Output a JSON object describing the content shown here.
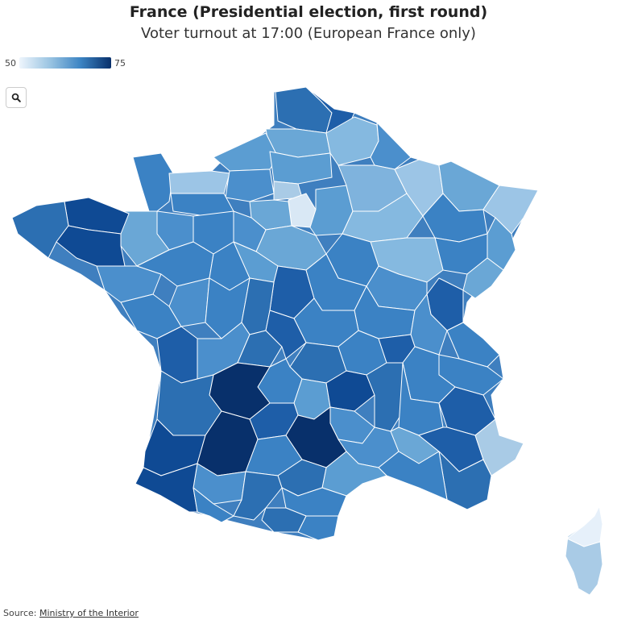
{
  "header": {
    "title": "France (Presidential election, first round)",
    "subtitle": "Voter turnout at 17:00 (European France only)"
  },
  "legend": {
    "min": "50",
    "max": "75"
  },
  "controls": {
    "zoom_icon": "search-icon"
  },
  "footer": {
    "source_prefix": "Source:",
    "source_link": "Ministry of the Interior"
  },
  "map_data": {
    "type": "choropleth",
    "region": "France",
    "metric": "voter turnout at 17:00",
    "scale": {
      "min": 50,
      "max": 75,
      "colors": [
        "#eef5fc",
        "#08306b"
      ]
    }
  }
}
